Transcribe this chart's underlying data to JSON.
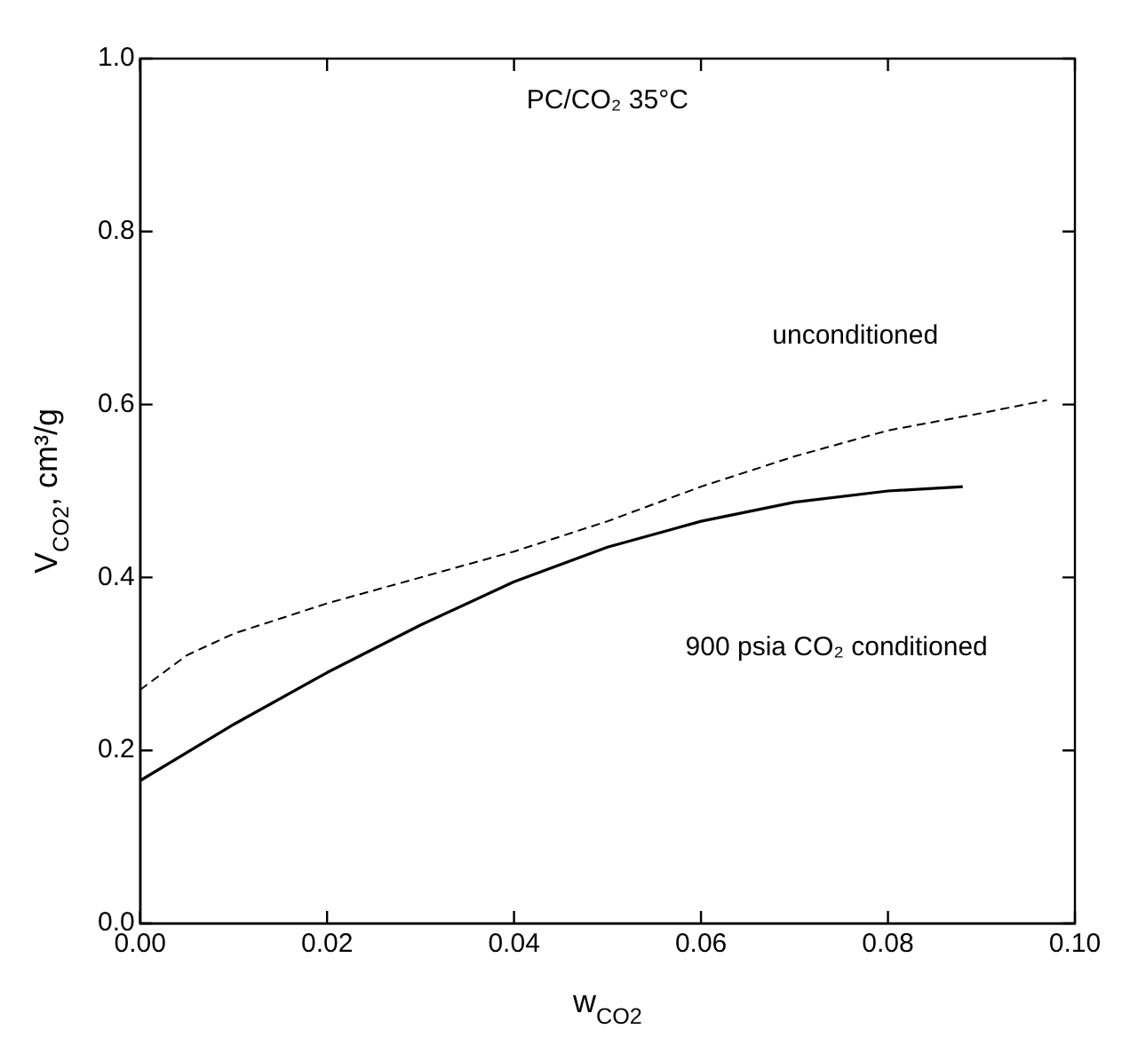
{
  "chart_data": {
    "type": "line",
    "title": "PC/CO₂ 35°C",
    "xlabel": "w$_{CO2}$",
    "ylabel": "V$_{CO2}$, cm³/g",
    "xlim": [
      0,
      0.1
    ],
    "xticks": [
      {
        "value": 0,
        "label": "0.00"
      },
      {
        "value": 0.02,
        "label": "0.02"
      },
      {
        "value": 0.04,
        "label": "0.04"
      },
      {
        "value": 0.06,
        "label": "0.06"
      },
      {
        "value": 0.08,
        "label": "0.08"
      },
      {
        "value": 0.1,
        "label": "0.10"
      }
    ],
    "ylim": [
      0,
      1
    ],
    "yticks": [
      {
        "value": 0,
        "label": "0.0"
      },
      {
        "value": 0.2,
        "label": "0.2"
      },
      {
        "value": 0.4,
        "label": "0.4"
      },
      {
        "value": 0.6,
        "label": "0.6"
      },
      {
        "value": 0.8,
        "label": "0.8"
      },
      {
        "value": 1,
        "label": "1.0"
      }
    ],
    "marker": "none",
    "legend": false,
    "annotations": [
      "unconditioned",
      "900 psia CO₂ conditioned"
    ],
    "series": [
      {
        "color": "#000000",
        "line_style": "solid",
        "x": [
          0,
          0.01,
          0.02,
          0.03,
          0.04,
          0.05,
          0.06,
          0.07,
          0.08,
          0.088
        ],
        "values": [
          0.165,
          0.23,
          0.29,
          0.345,
          0.395,
          0.435,
          0.465,
          0.487,
          0.5,
          0.505
        ]
      },
      {
        "color": "#000000",
        "line_style": "dashed",
        "x": [
          0,
          0.005,
          0.01,
          0.02,
          0.03,
          0.04,
          0.05,
          0.06,
          0.07,
          0.08,
          0.09,
          0.097
        ],
        "values": [
          0.27,
          0.31,
          0.335,
          0.37,
          0.4,
          0.43,
          0.465,
          0.505,
          0.54,
          0.57,
          0.59,
          0.605
        ]
      }
    ]
  }
}
